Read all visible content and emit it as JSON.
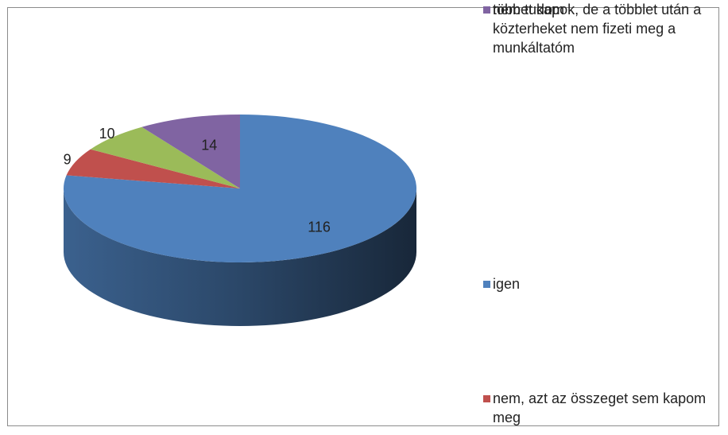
{
  "chart_data": {
    "type": "pie3d",
    "categories": [
      "igen",
      "nem, azt az összeget sem kapom meg",
      "többet kapok, de a többlet után a közterheket nem fizeti meg a munkáltatóm",
      "nem tudom"
    ],
    "values": [
      116,
      9,
      10,
      14
    ],
    "colors": [
      "#4f81bd",
      "#c0504d",
      "#9bbb59",
      "#8064a2"
    ],
    "legend": "right"
  }
}
